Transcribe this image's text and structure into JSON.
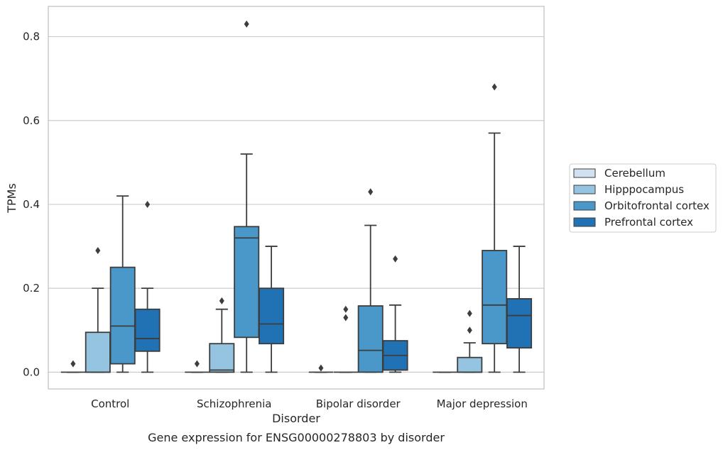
{
  "chart_data": {
    "type": "box",
    "title": "Gene expression for ENSG00000278803 by disorder",
    "xlabel": "Disorder",
    "ylabel": "TPMs",
    "ylim": [
      -0.04,
      0.872
    ],
    "yticks": [
      0.0,
      0.2,
      0.4,
      0.6,
      0.8
    ],
    "ytick_labels": [
      "0.0",
      "0.2",
      "0.4",
      "0.6",
      "0.8"
    ],
    "grid": "horizontal",
    "legend_position": "right",
    "categories": [
      "Control",
      "Schizophrenia",
      "Bipolar disorder",
      "Major depression"
    ],
    "series": [
      {
        "name": "Cerebellum",
        "color": "#d0e1f2",
        "boxes": [
          {
            "q1": 0,
            "median": 0,
            "q3": 0,
            "whisker_low": 0,
            "whisker_high": 0,
            "outliers": [
              0.02
            ]
          },
          {
            "q1": 0,
            "median": 0,
            "q3": 0,
            "whisker_low": 0,
            "whisker_high": 0,
            "outliers": [
              0.02
            ]
          },
          {
            "q1": 0,
            "median": 0,
            "q3": 0,
            "whisker_low": 0,
            "whisker_high": 0,
            "outliers": [
              0.01
            ]
          },
          {
            "q1": 0,
            "median": 0,
            "q3": 0,
            "whisker_low": 0,
            "whisker_high": 0,
            "outliers": []
          }
        ]
      },
      {
        "name": "Hipppocampus",
        "color": "#94c4df",
        "boxes": [
          {
            "q1": 0,
            "median": 0,
            "q3": 0.095,
            "whisker_low": 0,
            "whisker_high": 0.2,
            "outliers": [
              0.29
            ]
          },
          {
            "q1": 0,
            "median": 0.005,
            "q3": 0.068,
            "whisker_low": 0,
            "whisker_high": 0.15,
            "outliers": [
              0.17
            ]
          },
          {
            "q1": 0,
            "median": 0,
            "q3": 0,
            "whisker_low": 0,
            "whisker_high": 0,
            "outliers": [
              0.13,
              0.15
            ]
          },
          {
            "q1": 0,
            "median": 0,
            "q3": 0.035,
            "whisker_low": 0,
            "whisker_high": 0.07,
            "outliers": [
              0.1,
              0.14
            ]
          }
        ]
      },
      {
        "name": "Orbitofrontal cortex",
        "color": "#4a98c9",
        "boxes": [
          {
            "q1": 0.02,
            "median": 0.11,
            "q3": 0.25,
            "whisker_low": 0,
            "whisker_high": 0.42,
            "outliers": []
          },
          {
            "q1": 0.083,
            "median": 0.32,
            "q3": 0.347,
            "whisker_low": 0,
            "whisker_high": 0.52,
            "outliers": [
              0.83
            ]
          },
          {
            "q1": 0,
            "median": 0.052,
            "q3": 0.158,
            "whisker_low": 0,
            "whisker_high": 0.35,
            "outliers": [
              0.43
            ]
          },
          {
            "q1": 0.068,
            "median": 0.16,
            "q3": 0.29,
            "whisker_low": 0,
            "whisker_high": 0.57,
            "outliers": [
              0.68
            ]
          }
        ]
      },
      {
        "name": "Prefrontal cortex",
        "color": "#2171b5",
        "boxes": [
          {
            "q1": 0.05,
            "median": 0.08,
            "q3": 0.15,
            "whisker_low": 0,
            "whisker_high": 0.2,
            "outliers": [
              0.4
            ]
          },
          {
            "q1": 0.068,
            "median": 0.115,
            "q3": 0.2,
            "whisker_low": 0,
            "whisker_high": 0.3,
            "outliers": []
          },
          {
            "q1": 0.005,
            "median": 0.04,
            "q3": 0.075,
            "whisker_low": 0,
            "whisker_high": 0.16,
            "outliers": [
              0.27
            ]
          },
          {
            "q1": 0.058,
            "median": 0.135,
            "q3": 0.175,
            "whisker_low": 0,
            "whisker_high": 0.3,
            "outliers": []
          }
        ]
      }
    ]
  }
}
